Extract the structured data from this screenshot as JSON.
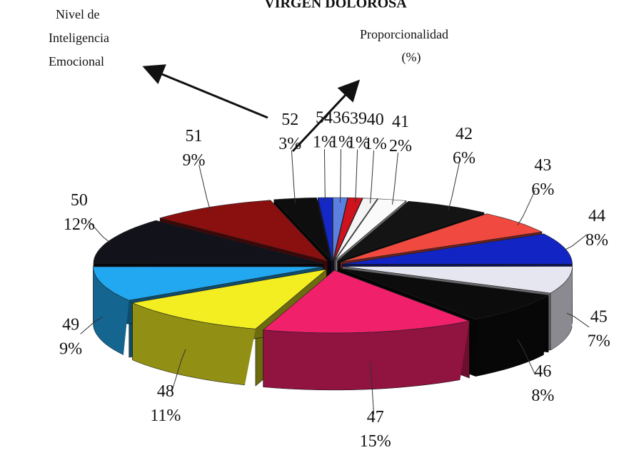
{
  "chart_data": {
    "type": "pie3d",
    "title": "VIRGEN DOLOROSA",
    "annotations": [
      [
        "Nivel de",
        "Inteligencia",
        "Emocional"
      ],
      [
        "Proporcionalidad",
        "(%)"
      ]
    ],
    "categories": [
      "36",
      "39",
      "40",
      "41",
      "42",
      "43",
      "44",
      "45",
      "46",
      "47",
      "48",
      "49",
      "50",
      "51",
      "52",
      "54"
    ],
    "values": [
      1,
      1,
      1,
      2,
      6,
      6,
      8,
      7,
      8,
      15,
      11,
      9,
      12,
      9,
      3,
      1
    ],
    "value_labels": [
      "1%",
      "1%",
      "1%",
      "2%",
      "6%",
      "6%",
      "8%",
      "7%",
      "8%",
      "15%",
      "11%",
      "9%",
      "12%",
      "9%",
      "3%",
      "1%"
    ],
    "colors": [
      "#5b80e0",
      "#d0121e",
      "#f4f4f4",
      "#fafafa",
      "#141414",
      "#f04a40",
      "#1224c4",
      "#e6e6f0",
      "#0c0c0c",
      "#f0206a",
      "#f2ee22",
      "#22a8f0",
      "#12121a",
      "#8a1010",
      "#0e0e0e",
      "#1428c8"
    ]
  }
}
